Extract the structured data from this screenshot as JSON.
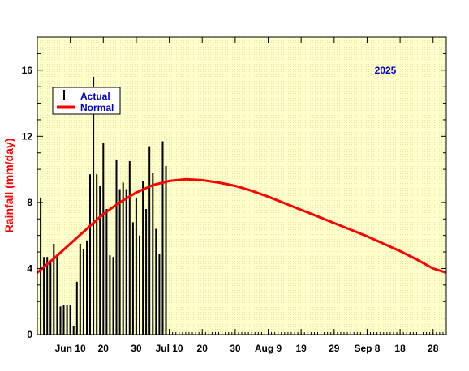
{
  "chart_data": {
    "type": "bar",
    "title": "",
    "annotation": "2025",
    "xlabel": "",
    "ylabel": "Rainfall (mm/day)",
    "ylim": [
      0,
      18
    ],
    "yticks": [
      0,
      4,
      8,
      12,
      16
    ],
    "xlim": [
      "2025-05-31",
      "2025-10-02"
    ],
    "xticks": [
      {
        "date": "2025-06-10",
        "label": "Jun 10"
      },
      {
        "date": "2025-06-20",
        "label": "20"
      },
      {
        "date": "2025-06-30",
        "label": "30"
      },
      {
        "date": "2025-07-10",
        "label": "Jul 10"
      },
      {
        "date": "2025-07-20",
        "label": "20"
      },
      {
        "date": "2025-07-30",
        "label": "30"
      },
      {
        "date": "2025-08-09",
        "label": "Aug 9"
      },
      {
        "date": "2025-08-19",
        "label": "19"
      },
      {
        "date": "2025-08-29",
        "label": "29"
      },
      {
        "date": "2025-09-08",
        "label": "Sep 8"
      },
      {
        "date": "2025-09-18",
        "label": "18"
      },
      {
        "date": "2025-09-28",
        "label": "28"
      }
    ],
    "grid": false,
    "legend": {
      "position": "top-left",
      "entries": [
        {
          "name": "Actual",
          "color": "#000000",
          "symbol": "bar"
        },
        {
          "name": "Normal",
          "color": "#ff0000",
          "symbol": "line"
        }
      ]
    },
    "colors": {
      "actual": "#000000",
      "normal": "#ff0000",
      "background": "#ffffcc",
      "annotation": "#0000cc"
    },
    "series": [
      {
        "name": "Actual",
        "kind": "bar",
        "x": [
          "2025-06-01",
          "2025-06-02",
          "2025-06-03",
          "2025-06-04",
          "2025-06-05",
          "2025-06-06",
          "2025-06-07",
          "2025-06-08",
          "2025-06-09",
          "2025-06-10",
          "2025-06-11",
          "2025-06-12",
          "2025-06-13",
          "2025-06-14",
          "2025-06-15",
          "2025-06-16",
          "2025-06-17",
          "2025-06-18",
          "2025-06-19",
          "2025-06-20",
          "2025-06-21",
          "2025-06-22",
          "2025-06-23",
          "2025-06-24",
          "2025-06-25",
          "2025-06-26",
          "2025-06-27",
          "2025-06-28",
          "2025-06-29",
          "2025-06-30",
          "2025-07-01",
          "2025-07-02",
          "2025-07-03",
          "2025-07-04",
          "2025-07-05",
          "2025-07-06",
          "2025-07-07",
          "2025-07-08",
          "2025-07-09"
        ],
        "values": [
          8.3,
          4.7,
          4.7,
          4.5,
          5.5,
          4.7,
          1.7,
          1.8,
          1.8,
          1.8,
          0.5,
          3.2,
          5.5,
          5.2,
          5.7,
          9.7,
          15.6,
          9.7,
          9.0,
          11.6,
          7.6,
          4.8,
          4.7,
          10.6,
          8.8,
          9.2,
          8.8,
          10.5,
          6.8,
          8.3,
          6.0,
          9.3,
          7.6,
          11.4,
          9.8,
          6.4,
          4.9,
          11.7,
          10.2
        ]
      },
      {
        "name": "Normal",
        "kind": "line",
        "x": [
          "2025-05-31",
          "2025-06-05",
          "2025-06-10",
          "2025-06-15",
          "2025-06-20",
          "2025-06-25",
          "2025-06-30",
          "2025-07-05",
          "2025-07-10",
          "2025-07-15",
          "2025-07-20",
          "2025-07-25",
          "2025-07-30",
          "2025-08-04",
          "2025-08-09",
          "2025-08-14",
          "2025-08-19",
          "2025-08-24",
          "2025-08-29",
          "2025-09-03",
          "2025-09-08",
          "2025-09-13",
          "2025-09-18",
          "2025-09-23",
          "2025-09-28",
          "2025-10-02"
        ],
        "values": [
          3.75,
          4.6,
          5.5,
          6.4,
          7.3,
          8.0,
          8.6,
          9.05,
          9.3,
          9.4,
          9.35,
          9.2,
          9.0,
          8.7,
          8.35,
          7.95,
          7.55,
          7.15,
          6.75,
          6.35,
          5.95,
          5.5,
          5.05,
          4.55,
          4.0,
          3.75
        ]
      }
    ]
  }
}
